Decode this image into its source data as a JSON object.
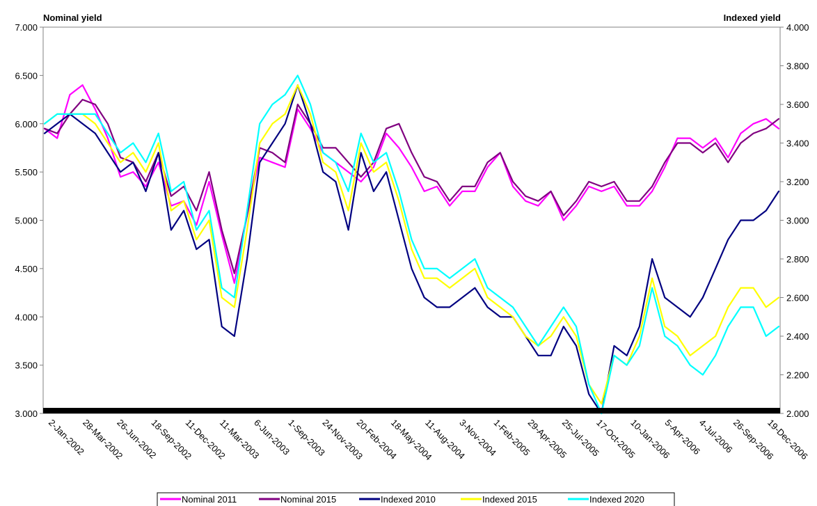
{
  "chart_data": {
    "type": "line",
    "left_axis_title": "Nominal yield",
    "right_axis_title": "Indexed yield",
    "left_ylim": [
      3.0,
      7.0
    ],
    "right_ylim": [
      2.0,
      4.0
    ],
    "left_ticks": [
      "3.000",
      "3.500",
      "4.000",
      "4.500",
      "5.000",
      "5.500",
      "6.000",
      "6.500",
      "7.000"
    ],
    "right_ticks": [
      "2.000",
      "2.200",
      "2.400",
      "2.600",
      "2.800",
      "3.000",
      "3.200",
      "3.400",
      "3.600",
      "3.800",
      "4.000"
    ],
    "x_labels": [
      "2-Jan-2002",
      "28-Mar-2002",
      "26-Jun-2002",
      "18-Sep-2002",
      "11-Dec-2002",
      "11-Mar-2003",
      "6-Jun-2003",
      "1-Sep-2003",
      "24-Nov-2003",
      "20-Feb-2004",
      "18-May-2004",
      "11-Aug-2004",
      "3-Nov-2004",
      "1-Feb-2005",
      "29-Apr-2005",
      "25-Jul-2005",
      "17-Oct-2005",
      "10-Jan-2006",
      "5-Apr-2006",
      "4-Jul-2006",
      "26-Sep-2006",
      "19-Dec-2006"
    ],
    "grid": false,
    "legend_position": "bottom",
    "series": [
      {
        "name": "Nominal  2011",
        "axis": "left",
        "color": "#ff00ff",
        "values": [
          5.95,
          5.85,
          6.3,
          6.4,
          6.15,
          5.85,
          5.45,
          5.5,
          5.35,
          5.6,
          5.15,
          5.2,
          4.95,
          5.4,
          4.85,
          4.35,
          5.05,
          5.65,
          5.6,
          5.55,
          6.15,
          5.95,
          5.7,
          5.6,
          5.5,
          5.4,
          5.55,
          5.9,
          5.75,
          5.55,
          5.3,
          5.35,
          5.15,
          5.3,
          5.3,
          5.55,
          5.7,
          5.35,
          5.2,
          5.15,
          5.3,
          5.0,
          5.15,
          5.35,
          5.3,
          5.35,
          5.15,
          5.15,
          5.3,
          5.55,
          5.85,
          5.85,
          5.75,
          5.85,
          5.65,
          5.9,
          6.0,
          6.05,
          5.95
        ]
      },
      {
        "name": "Nominal 2015",
        "axis": "left",
        "color": "#800080",
        "values": [
          5.95,
          5.9,
          6.1,
          6.25,
          6.2,
          6.0,
          5.65,
          5.6,
          5.4,
          5.7,
          5.25,
          5.35,
          5.1,
          5.5,
          4.9,
          4.45,
          5.05,
          5.75,
          5.7,
          5.6,
          6.2,
          6.0,
          5.75,
          5.75,
          5.6,
          5.45,
          5.6,
          5.95,
          6.0,
          5.7,
          5.45,
          5.4,
          5.2,
          5.35,
          5.35,
          5.6,
          5.7,
          5.4,
          5.25,
          5.2,
          5.3,
          5.05,
          5.2,
          5.4,
          5.35,
          5.4,
          5.2,
          5.2,
          5.35,
          5.6,
          5.8,
          5.8,
          5.7,
          5.8,
          5.6,
          5.8,
          5.9,
          5.95,
          6.05
        ]
      },
      {
        "name": "Indexed  2010",
        "axis": "right",
        "color": "#000080",
        "values": [
          3.45,
          3.5,
          3.55,
          3.5,
          3.45,
          3.35,
          3.25,
          3.3,
          3.15,
          3.35,
          2.95,
          3.05,
          2.85,
          2.9,
          2.45,
          2.4,
          2.8,
          3.3,
          3.4,
          3.5,
          3.7,
          3.5,
          3.25,
          3.2,
          2.95,
          3.35,
          3.15,
          3.25,
          3.0,
          2.75,
          2.6,
          2.55,
          2.55,
          2.6,
          2.65,
          2.55,
          2.5,
          2.5,
          2.4,
          2.3,
          2.3,
          2.45,
          2.35,
          2.1,
          2.0,
          2.35,
          2.3,
          2.45,
          2.8,
          2.6,
          2.55,
          2.5,
          2.6,
          2.75,
          2.9,
          3.0,
          3.0,
          3.05,
          3.15
        ]
      },
      {
        "name": "Indexed 2015",
        "axis": "right",
        "color": "#ffff00",
        "values": [
          3.5,
          3.55,
          3.55,
          3.55,
          3.5,
          3.4,
          3.3,
          3.35,
          3.25,
          3.4,
          3.05,
          3.1,
          2.9,
          3.0,
          2.6,
          2.55,
          2.95,
          3.4,
          3.5,
          3.55,
          3.7,
          3.55,
          3.3,
          3.25,
          3.05,
          3.4,
          3.25,
          3.3,
          3.1,
          2.85,
          2.7,
          2.7,
          2.65,
          2.7,
          2.75,
          2.6,
          2.55,
          2.5,
          2.4,
          2.35,
          2.4,
          2.5,
          2.4,
          2.15,
          2.05,
          2.3,
          2.25,
          2.4,
          2.7,
          2.45,
          2.4,
          2.3,
          2.35,
          2.4,
          2.55,
          2.65,
          2.65,
          2.55,
          2.6
        ]
      },
      {
        "name": "Indexed 2020",
        "axis": "right",
        "color": "#00ffff",
        "values": [
          3.5,
          3.55,
          3.55,
          3.55,
          3.55,
          3.45,
          3.35,
          3.4,
          3.3,
          3.45,
          3.15,
          3.2,
          2.95,
          3.05,
          2.65,
          2.6,
          3.05,
          3.5,
          3.6,
          3.65,
          3.75,
          3.6,
          3.35,
          3.3,
          3.15,
          3.45,
          3.3,
          3.35,
          3.15,
          2.9,
          2.75,
          2.75,
          2.7,
          2.75,
          2.8,
          2.65,
          2.6,
          2.55,
          2.45,
          2.35,
          2.45,
          2.55,
          2.45,
          2.15,
          2.0,
          2.3,
          2.25,
          2.35,
          2.65,
          2.4,
          2.35,
          2.25,
          2.2,
          2.3,
          2.45,
          2.55,
          2.55,
          2.4,
          2.45
        ]
      }
    ]
  }
}
